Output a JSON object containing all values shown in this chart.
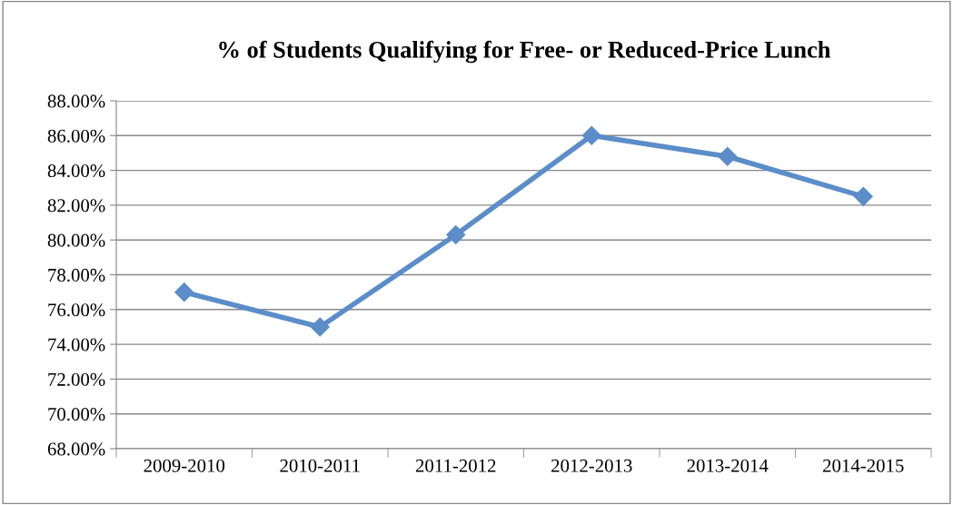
{
  "chart_data": {
    "type": "line",
    "title": "% of Students Qualifying for Free- or Reduced-Price Lunch",
    "categories": [
      "2009-2010",
      "2010-2011",
      "2011-2012",
      "2012-2013",
      "2013-2014",
      "2014-2015"
    ],
    "series": [
      {
        "color": "#5b8dc9",
        "values": [
          77.0,
          75.0,
          80.3,
          86.0,
          84.8,
          82.5
        ]
      }
    ],
    "ylim": [
      68,
      88
    ],
    "yticks": [
      {
        "value": 68,
        "label": "68.00%"
      },
      {
        "value": 70,
        "label": "70.00%"
      },
      {
        "value": 72,
        "label": "72.00%"
      },
      {
        "value": 74,
        "label": "74.00%"
      },
      {
        "value": 76,
        "label": "76.00%"
      },
      {
        "value": 78,
        "label": "78.00%"
      },
      {
        "value": 80,
        "label": "80.00%"
      },
      {
        "value": 82,
        "label": "82.00%"
      },
      {
        "value": 84,
        "label": "84.00%"
      },
      {
        "value": 86,
        "label": "86.00%"
      },
      {
        "value": 88,
        "label": "88.00%"
      }
    ],
    "grid": "y",
    "marker": "diamond",
    "line_style": "solid"
  }
}
